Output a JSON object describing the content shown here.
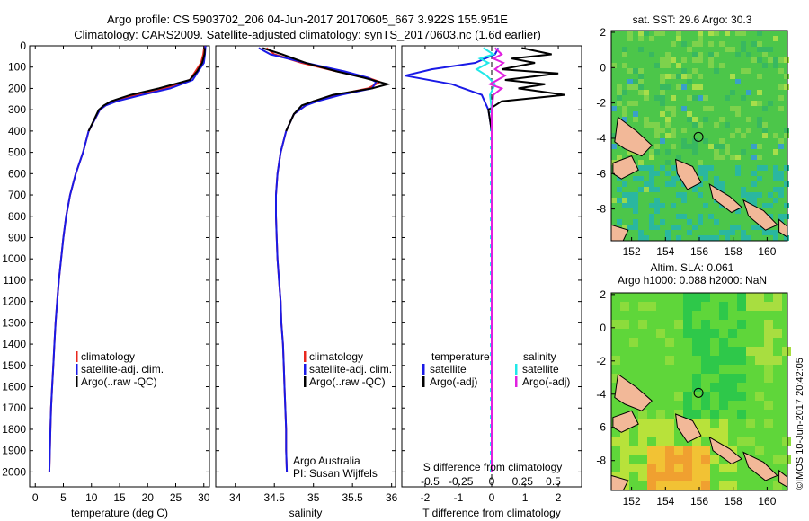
{
  "header": {
    "line1": "Argo profile: CS 5903702_206 04-Jun-2017 20170605_667 3.922S 155.951E",
    "line2": "Climatology: CARS2009. Satellite-adjusted climatology: synTS_20170603.nc (1.6d earlier)"
  },
  "side_credit": "©IMOS 10-Jun-2017 20:42:05",
  "credits": {
    "line1": "Argo Australia",
    "line2": "PI: Susan Wijffels"
  },
  "colors": {
    "climatology": "#e8281e",
    "satellite": "#1a1ae6",
    "argo": "#000000",
    "sal_sat": "#20e8e8",
    "sal_argo": "#e020e0",
    "land": "#f2b898"
  },
  "depth_axis": {
    "ticks": [
      0,
      100,
      200,
      300,
      400,
      500,
      600,
      700,
      800,
      900,
      1000,
      1100,
      1200,
      1300,
      1400,
      1500,
      1600,
      1700,
      1800,
      1900,
      2000
    ],
    "range": [
      0,
      2070
    ]
  },
  "legend_profiles": {
    "items": [
      "climatology",
      "satellite-adj. clim.",
      "Argo(..raw -QC)"
    ]
  },
  "legend_diff": {
    "temp_header": "temperature",
    "sal_header": "salinity",
    "temp_items": [
      "satellite",
      "Argo(-adj)"
    ],
    "sal_items": [
      "satellite",
      "Argo(-adj)"
    ]
  },
  "chart_data": [
    {
      "type": "line",
      "xlabel": "temperature (deg C)",
      "xlim": [
        -1,
        31
      ],
      "xticks": [
        0,
        5,
        10,
        15,
        20,
        25,
        30
      ],
      "ylim": [
        0,
        2070
      ],
      "y_inverted": true,
      "series": [
        {
          "name": "climatology",
          "points": [
            [
              30.1,
              0
            ],
            [
              29.9,
              40
            ],
            [
              29.5,
              80
            ],
            [
              28.5,
              120
            ],
            [
              27.5,
              160
            ],
            [
              23,
              200
            ],
            [
              18,
              230
            ],
            [
              14,
              260
            ],
            [
              12.5,
              280
            ],
            [
              11.5,
              300
            ],
            [
              10.5,
              350
            ],
            [
              9.5,
              400
            ],
            [
              8.5,
              500
            ],
            [
              7.2,
              600
            ],
            [
              6.2,
              700
            ],
            [
              5.5,
              800
            ],
            [
              5.0,
              900
            ],
            [
              4.6,
              1000
            ],
            [
              4.2,
              1100
            ],
            [
              3.9,
              1200
            ],
            [
              3.6,
              1300
            ],
            [
              3.4,
              1400
            ],
            [
              3.2,
              1500
            ],
            [
              3.0,
              1600
            ],
            [
              2.8,
              1700
            ],
            [
              2.7,
              1800
            ],
            [
              2.6,
              1900
            ],
            [
              2.5,
              2000
            ]
          ]
        },
        {
          "name": "satellite-adj. clim.",
          "points": [
            [
              30.3,
              0
            ],
            [
              30.2,
              40
            ],
            [
              30,
              80
            ],
            [
              29,
              120
            ],
            [
              28,
              160
            ],
            [
              24,
              200
            ],
            [
              19,
              230
            ],
            [
              14.5,
              260
            ],
            [
              12.5,
              280
            ],
            [
              11.5,
              300
            ],
            [
              10.5,
              350
            ],
            [
              9.5,
              400
            ],
            [
              8.5,
              500
            ],
            [
              7.2,
              600
            ],
            [
              6.2,
              700
            ],
            [
              5.5,
              800
            ],
            [
              5.0,
              900
            ],
            [
              4.6,
              1000
            ],
            [
              4.2,
              1100
            ],
            [
              3.9,
              1200
            ],
            [
              3.6,
              1300
            ],
            [
              3.4,
              1400
            ],
            [
              3.2,
              1500
            ],
            [
              3.0,
              1600
            ],
            [
              2.8,
              1700
            ],
            [
              2.7,
              1800
            ],
            [
              2.6,
              1900
            ],
            [
              2.5,
              2000
            ]
          ]
        },
        {
          "name": "Argo(..raw -QC)",
          "points": [
            [
              30.2,
              10
            ],
            [
              30.1,
              40
            ],
            [
              29.7,
              80
            ],
            [
              28.8,
              120
            ],
            [
              27.5,
              160
            ],
            [
              22,
              200
            ],
            [
              17,
              230
            ],
            [
              13.5,
              260
            ],
            [
              12.2,
              280
            ],
            [
              11.3,
              300
            ],
            [
              10.4,
              350
            ],
            [
              9.5,
              400
            ]
          ]
        }
      ]
    },
    {
      "type": "line",
      "xlabel": "salinity",
      "xlim": [
        33.75,
        36.05
      ],
      "xticks": [
        34,
        34.5,
        35,
        35.5,
        36
      ],
      "xticklabels": [
        "34",
        "34.5",
        "35",
        "35.5",
        "36"
      ],
      "ylim": [
        0,
        2070
      ],
      "y_inverted": true,
      "series": [
        {
          "name": "climatology",
          "points": [
            [
              34.4,
              10
            ],
            [
              34.5,
              40
            ],
            [
              34.85,
              80
            ],
            [
              35.3,
              120
            ],
            [
              35.7,
              150
            ],
            [
              35.85,
              170
            ],
            [
              35.7,
              200
            ],
            [
              35.3,
              230
            ],
            [
              35.0,
              260
            ],
            [
              34.9,
              280
            ],
            [
              34.75,
              320
            ],
            [
              34.65,
              400
            ],
            [
              34.58,
              500
            ],
            [
              34.54,
              600
            ],
            [
              34.52,
              700
            ],
            [
              34.52,
              800
            ],
            [
              34.53,
              900
            ],
            [
              34.54,
              1000
            ],
            [
              34.56,
              1100
            ],
            [
              34.58,
              1200
            ],
            [
              34.59,
              1300
            ],
            [
              34.61,
              1400
            ],
            [
              34.62,
              1500
            ],
            [
              34.63,
              1600
            ],
            [
              34.64,
              1700
            ],
            [
              34.65,
              1800
            ],
            [
              34.65,
              1900
            ],
            [
              34.66,
              2000
            ]
          ]
        },
        {
          "name": "satellite-adj. clim.",
          "points": [
            [
              34.3,
              10
            ],
            [
              34.45,
              40
            ],
            [
              34.9,
              80
            ],
            [
              35.4,
              120
            ],
            [
              35.7,
              150
            ],
            [
              35.8,
              170
            ],
            [
              35.75,
              200
            ],
            [
              35.35,
              230
            ],
            [
              35.05,
              260
            ],
            [
              34.9,
              280
            ],
            [
              34.75,
              320
            ],
            [
              34.65,
              400
            ],
            [
              34.58,
              500
            ],
            [
              34.54,
              600
            ],
            [
              34.52,
              700
            ],
            [
              34.52,
              800
            ],
            [
              34.53,
              900
            ],
            [
              34.54,
              1000
            ],
            [
              34.56,
              1100
            ],
            [
              34.58,
              1200
            ],
            [
              34.59,
              1300
            ],
            [
              34.61,
              1400
            ],
            [
              34.62,
              1500
            ],
            [
              34.63,
              1600
            ],
            [
              34.64,
              1700
            ],
            [
              34.65,
              1800
            ],
            [
              34.65,
              1900
            ],
            [
              34.66,
              2000
            ]
          ]
        },
        {
          "name": "Argo(..raw -QC)",
          "points": [
            [
              34.35,
              10
            ],
            [
              34.6,
              40
            ],
            [
              34.9,
              80
            ],
            [
              35.3,
              120
            ],
            [
              35.65,
              150
            ],
            [
              35.95,
              180
            ],
            [
              35.75,
              200
            ],
            [
              35.25,
              230
            ],
            [
              35.0,
              260
            ],
            [
              34.85,
              280
            ],
            [
              34.75,
              320
            ],
            [
              34.65,
              400
            ]
          ]
        }
      ]
    },
    {
      "type": "line",
      "xlabel": "T difference from climatology",
      "xlabel_top": "S difference from climatology",
      "xlim": [
        -2.7,
        2.7
      ],
      "xticks": [
        -2,
        -1,
        0,
        1,
        2
      ],
      "top_ticks": [
        -0.5,
        -0.25,
        0,
        0.25,
        0.5
      ],
      "top_ticklabels": [
        "-0.5",
        "-0.25",
        "0",
        "0.25",
        "0.5"
      ],
      "ylim": [
        0,
        2070
      ],
      "y_inverted": true,
      "series": [
        {
          "name": "temperature satellite",
          "points": [
            [
              0.2,
              10
            ],
            [
              0.1,
              40
            ],
            [
              -0.2,
              60
            ],
            [
              -0.5,
              80
            ],
            [
              -1.8,
              110
            ],
            [
              -2.6,
              140
            ],
            [
              -1.2,
              180
            ],
            [
              -0.3,
              230
            ],
            [
              -0.1,
              300
            ],
            [
              0,
              400
            ],
            [
              0,
              2000
            ]
          ]
        },
        {
          "name": "temperature Argo(-adj)",
          "points": [
            [
              0.9,
              10
            ],
            [
              1.8,
              40
            ],
            [
              0.6,
              60
            ],
            [
              1.3,
              80
            ],
            [
              0.3,
              110
            ],
            [
              2.0,
              130
            ],
            [
              0.4,
              160
            ],
            [
              1.6,
              180
            ],
            [
              0.8,
              200
            ],
            [
              2.2,
              230
            ],
            [
              0.3,
              260
            ],
            [
              -0.1,
              300
            ],
            [
              0,
              400
            ]
          ]
        },
        {
          "name": "salinity satellite",
          "points": [
            [
              -0.25,
              10
            ],
            [
              0.05,
              40
            ],
            [
              -0.35,
              60
            ],
            [
              -0.1,
              80
            ],
            [
              -0.45,
              110
            ],
            [
              -0.15,
              140
            ],
            [
              0.1,
              180
            ],
            [
              -0.05,
              230
            ],
            [
              0,
              300
            ],
            [
              0,
              2000
            ]
          ]
        },
        {
          "name": "salinity Argo(-adj)",
          "points": [
            [
              0.1,
              10
            ],
            [
              0.3,
              40
            ],
            [
              0.05,
              60
            ],
            [
              0.35,
              80
            ],
            [
              0.1,
              110
            ],
            [
              0.4,
              140
            ],
            [
              -0.05,
              180
            ],
            [
              0.3,
              200
            ],
            [
              0.05,
              230
            ],
            [
              0,
              300
            ],
            [
              0,
              2000
            ]
          ]
        }
      ]
    },
    {
      "type": "heatmap",
      "title": "sat. SST: 29.6  Argo: 30.3",
      "xlim": [
        150.8,
        161.2
      ],
      "ylim": [
        -9.8,
        2.1
      ],
      "xticks": [
        152,
        154,
        156,
        158,
        160
      ],
      "yticks": [
        2,
        0,
        -2,
        -4,
        -6,
        -8
      ],
      "argo_position": [
        155.951,
        -3.922
      ]
    },
    {
      "type": "heatmap",
      "title": "Altim. SLA: 0.061",
      "subtitle": "Argo h1000: 0.088 h2000: NaN",
      "xlim": [
        150.8,
        161.2
      ],
      "ylim": [
        -9.8,
        2.1
      ],
      "xticks": [
        152,
        154,
        156,
        158,
        160
      ],
      "yticks": [
        2,
        0,
        -2,
        -4,
        -6,
        -8
      ],
      "argo_position": [
        155.951,
        -3.922
      ]
    }
  ]
}
